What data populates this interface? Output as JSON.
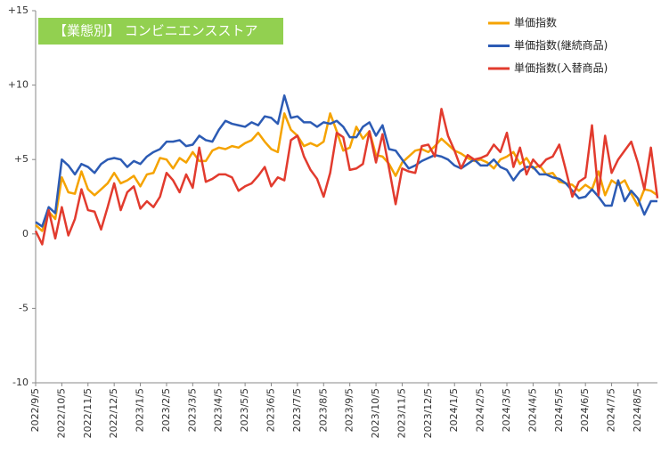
{
  "chart_data": {
    "type": "line",
    "title": "【業態別】 コンビニエンスストア",
    "categories": [
      "2022/9/5",
      null,
      null,
      null,
      "2022/10/5",
      null,
      null,
      null,
      "2022/11/5",
      null,
      null,
      null,
      "2022/12/5",
      null,
      null,
      null,
      "2023/1/5",
      null,
      null,
      null,
      "2023/2/5",
      null,
      null,
      null,
      "2023/3/5",
      null,
      null,
      null,
      "2023/4/5",
      null,
      null,
      null,
      "2023/5/5",
      null,
      null,
      null,
      "2023/6/5",
      null,
      null,
      null,
      "2023/7/5",
      null,
      null,
      null,
      "2023/8/5",
      null,
      null,
      null,
      "2023/9/5",
      null,
      null,
      null,
      "2023/10/5",
      null,
      null,
      null,
      "2023/11/5",
      null,
      null,
      null,
      "2023/12/5",
      null,
      null,
      null,
      "2024/1/5",
      null,
      null,
      null,
      "2024/2/5",
      null,
      null,
      null,
      "2024/3/5",
      null,
      null,
      null,
      "2024/4/5",
      null,
      null,
      null,
      "2024/5/5",
      null,
      null,
      null,
      "2024/6/5",
      null,
      null,
      null,
      "2024/7/5",
      null,
      null,
      null,
      "2024/8/5",
      null,
      null,
      null
    ],
    "series": [
      {
        "name": "単価指数",
        "color": "#f5a300",
        "values": [
          0.6,
          0.2,
          1.5,
          1.0,
          3.8,
          2.8,
          2.7,
          4.2,
          3.0,
          2.6,
          3.0,
          3.4,
          4.1,
          3.4,
          3.6,
          3.9,
          3.2,
          4.0,
          4.1,
          5.1,
          5.0,
          4.4,
          5.1,
          4.8,
          5.5,
          4.9,
          4.9,
          5.6,
          5.8,
          5.7,
          5.9,
          5.8,
          6.1,
          6.3,
          6.8,
          6.2,
          5.7,
          5.5,
          8.1,
          7.0,
          6.6,
          5.9,
          6.1,
          5.9,
          6.2,
          8.1,
          6.9,
          5.6,
          5.8,
          7.2,
          6.4,
          6.9,
          5.3,
          5.2,
          4.7,
          3.9,
          4.8,
          5.2,
          5.6,
          5.7,
          5.5,
          5.9,
          6.4,
          6.0,
          5.6,
          5.4,
          5.1,
          4.9,
          5.0,
          4.8,
          4.4,
          5.0,
          5.2,
          5.5,
          4.7,
          5.1,
          4.4,
          4.6,
          4.0,
          4.1,
          3.5,
          3.4,
          3.3,
          2.9,
          3.3,
          3.0,
          4.2,
          2.6,
          3.6,
          3.3,
          3.6,
          2.7,
          1.9,
          3.0,
          2.9,
          2.6
        ]
      },
      {
        "name": "単価指数(継続商品)",
        "color": "#2c5bb4",
        "values": [
          0.8,
          0.5,
          1.8,
          1.4,
          5.0,
          4.6,
          4.0,
          4.7,
          4.5,
          4.1,
          4.7,
          5.0,
          5.1,
          5.0,
          4.5,
          4.9,
          4.7,
          5.2,
          5.5,
          5.7,
          6.2,
          6.2,
          6.3,
          5.9,
          6.0,
          6.6,
          6.3,
          6.2,
          7.0,
          7.6,
          7.4,
          7.3,
          7.2,
          7.5,
          7.3,
          7.9,
          7.8,
          7.4,
          9.3,
          7.8,
          7.9,
          7.5,
          7.5,
          7.2,
          7.5,
          7.4,
          7.6,
          7.2,
          6.5,
          6.5,
          7.2,
          7.5,
          6.6,
          7.3,
          5.7,
          5.6,
          5.0,
          4.4,
          4.6,
          4.9,
          5.1,
          5.3,
          5.2,
          5.0,
          4.6,
          4.4,
          4.7,
          5.0,
          4.6,
          4.6,
          5.0,
          4.5,
          4.3,
          3.6,
          4.2,
          4.5,
          4.5,
          4.0,
          4.0,
          3.8,
          3.7,
          3.4,
          2.9,
          2.4,
          2.5,
          3.0,
          2.5,
          1.9,
          1.9,
          3.6,
          2.2,
          2.9,
          2.4,
          1.3,
          2.2,
          2.2
        ]
      },
      {
        "name": "単価指数(入替商品)",
        "color": "#e23b2e",
        "values": [
          0.2,
          -0.7,
          1.6,
          -0.3,
          1.8,
          -0.1,
          1.0,
          3.0,
          1.6,
          1.5,
          0.3,
          1.8,
          3.4,
          1.6,
          2.8,
          3.2,
          1.7,
          2.2,
          1.8,
          2.5,
          4.1,
          3.6,
          2.8,
          4.0,
          3.1,
          5.8,
          3.5,
          3.7,
          4.0,
          4.0,
          3.8,
          2.9,
          3.2,
          3.4,
          3.9,
          4.5,
          3.2,
          3.8,
          3.6,
          6.3,
          6.6,
          5.2,
          4.3,
          3.7,
          2.5,
          4.1,
          6.8,
          6.5,
          4.3,
          4.4,
          4.7,
          6.9,
          4.8,
          6.7,
          4.4,
          2.0,
          4.4,
          4.2,
          4.1,
          5.9,
          6.0,
          5.2,
          8.4,
          6.6,
          5.6,
          4.4,
          5.3,
          5.0,
          5.1,
          5.3,
          6.0,
          5.5,
          6.8,
          4.5,
          5.8,
          4.0,
          5.0,
          4.5,
          5.0,
          5.2,
          6.0,
          4.3,
          2.5,
          3.5,
          3.8,
          7.3,
          2.6,
          6.6,
          4.1,
          5.0,
          5.6,
          6.2,
          4.8,
          3.0,
          5.8,
          2.4
        ]
      }
    ],
    "ylim": [
      -10,
      15
    ],
    "yticks": [
      -10,
      -5,
      0,
      {
        "value": 5,
        "label": "+5"
      },
      {
        "value": 10,
        "label": "+10"
      },
      {
        "value": 15,
        "label": "+15"
      }
    ],
    "grid": false,
    "legend_position": "top-right"
  }
}
